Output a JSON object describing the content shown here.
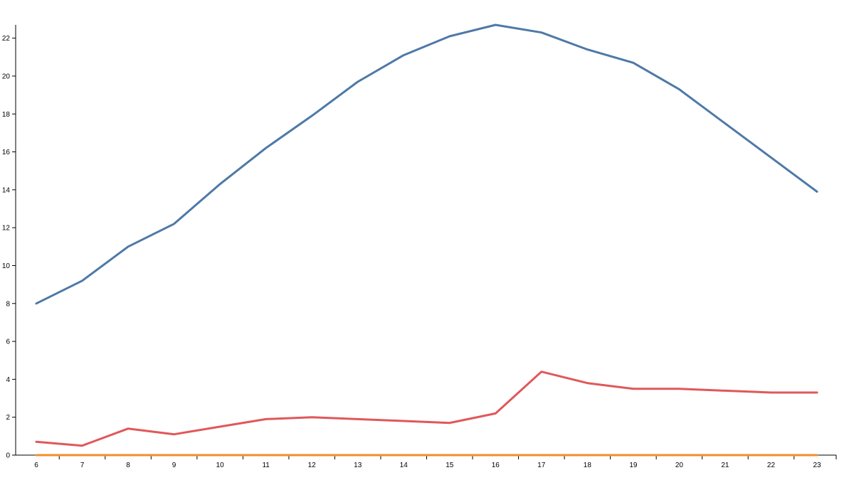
{
  "chart_data": {
    "type": "line",
    "title": "",
    "xlabel": "",
    "ylabel": "",
    "x": [
      6,
      7,
      8,
      9,
      10,
      11,
      12,
      13,
      14,
      15,
      16,
      17,
      18,
      19,
      20,
      21,
      22,
      23
    ],
    "xlim": [
      6,
      23
    ],
    "ylim": [
      0,
      22.7
    ],
    "y_ticks": [
      0,
      2,
      4,
      6,
      8,
      10,
      12,
      14,
      16,
      18,
      20,
      22
    ],
    "grid": false,
    "legend": "none",
    "series": [
      {
        "color": "#4e79a7",
        "values": [
          8.0,
          9.2,
          11.0,
          12.2,
          14.3,
          16.2,
          17.9,
          19.7,
          21.1,
          22.1,
          22.7,
          22.3,
          21.4,
          20.7,
          19.3,
          17.5,
          15.7,
          13.9
        ]
      },
      {
        "color": "#e15759",
        "values": [
          0.7,
          0.5,
          1.4,
          1.1,
          1.5,
          1.9,
          2.0,
          1.9,
          1.8,
          1.7,
          2.2,
          4.4,
          3.8,
          3.5,
          3.5,
          3.4,
          3.3,
          3.3
        ]
      },
      {
        "color": "#f28e2b",
        "values": [
          0,
          0,
          0,
          0,
          0,
          0,
          0,
          0,
          0,
          0,
          0,
          0,
          0,
          0,
          0,
          0,
          0,
          0
        ]
      }
    ]
  }
}
